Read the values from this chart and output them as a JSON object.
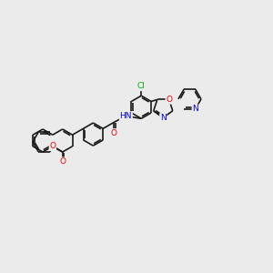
{
  "background_color": "#ebebeb",
  "bond_color": "#1a1a1a",
  "figsize": [
    3.0,
    3.0
  ],
  "dpi": 100,
  "atom_colors": {
    "O": "#e80000",
    "N": "#0000e8",
    "Cl": "#00aa00",
    "C": "#1a1a1a",
    "H": "#1a1a1a"
  },
  "lw": 1.2,
  "r": 0.42,
  "off": 0.055
}
